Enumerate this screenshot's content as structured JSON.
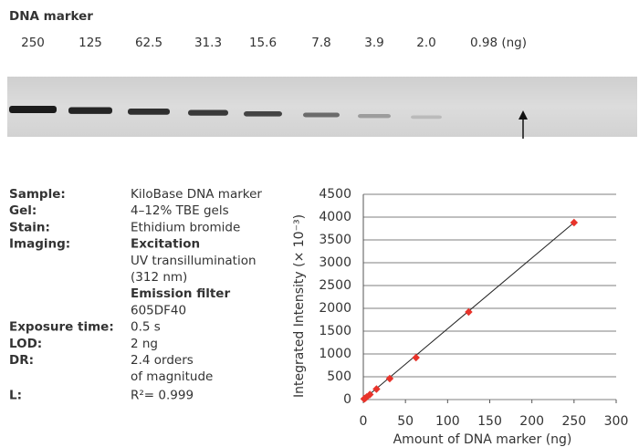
{
  "gel": {
    "title": "DNA marker",
    "lanes": [
      "250",
      "125",
      "62.5",
      "31.3",
      "15.6",
      "7.8",
      "3.9",
      "2.0",
      "0.98 (ng)"
    ]
  },
  "info": {
    "rows": [
      {
        "label": "Sample:",
        "lines": [
          "KiloBase DNA marker"
        ]
      },
      {
        "label": "Gel:",
        "lines": [
          "4–12% TBE gels"
        ]
      },
      {
        "label": "Stain:",
        "lines": [
          "Ethidium bromide"
        ]
      },
      {
        "label": "Imaging:",
        "lines": [
          "Excitation",
          "UV transillumination",
          "(312 nm)",
          "Emission filter",
          "605DF40"
        ],
        "bold_lines": [
          0,
          3
        ]
      },
      {
        "label": "Exposure time:",
        "lines": [
          "0.5 s"
        ]
      },
      {
        "label": "LOD:",
        "lines": [
          "2 ng"
        ]
      },
      {
        "label": "DR:",
        "lines": [
          "2.4 orders",
          "of magnitude"
        ]
      },
      {
        "label": "L:",
        "lines": [
          "R²= 0.999"
        ]
      }
    ]
  },
  "chart_data": {
    "type": "scatter",
    "x_label": "Amount of DNA marker (ng)",
    "y_label": "Integrated Intensity (× 10⁻³)",
    "x": [
      250,
      125,
      62.5,
      31.3,
      15.6,
      7.8,
      3.9,
      2.0,
      0.98
    ],
    "values": [
      3880,
      1920,
      920,
      460,
      230,
      110,
      55,
      25,
      15
    ],
    "color": "#e8332a",
    "fit_line": {
      "x": [
        0,
        250
      ],
      "y": [
        0,
        3880
      ]
    },
    "xlim": [
      0,
      300
    ],
    "xticks": [
      0,
      50,
      100,
      150,
      200,
      250,
      300
    ],
    "ylim": [
      0,
      4500
    ],
    "yticks": [
      0,
      500,
      1000,
      1500,
      2000,
      2500,
      3000,
      3500,
      4000,
      4500
    ]
  }
}
